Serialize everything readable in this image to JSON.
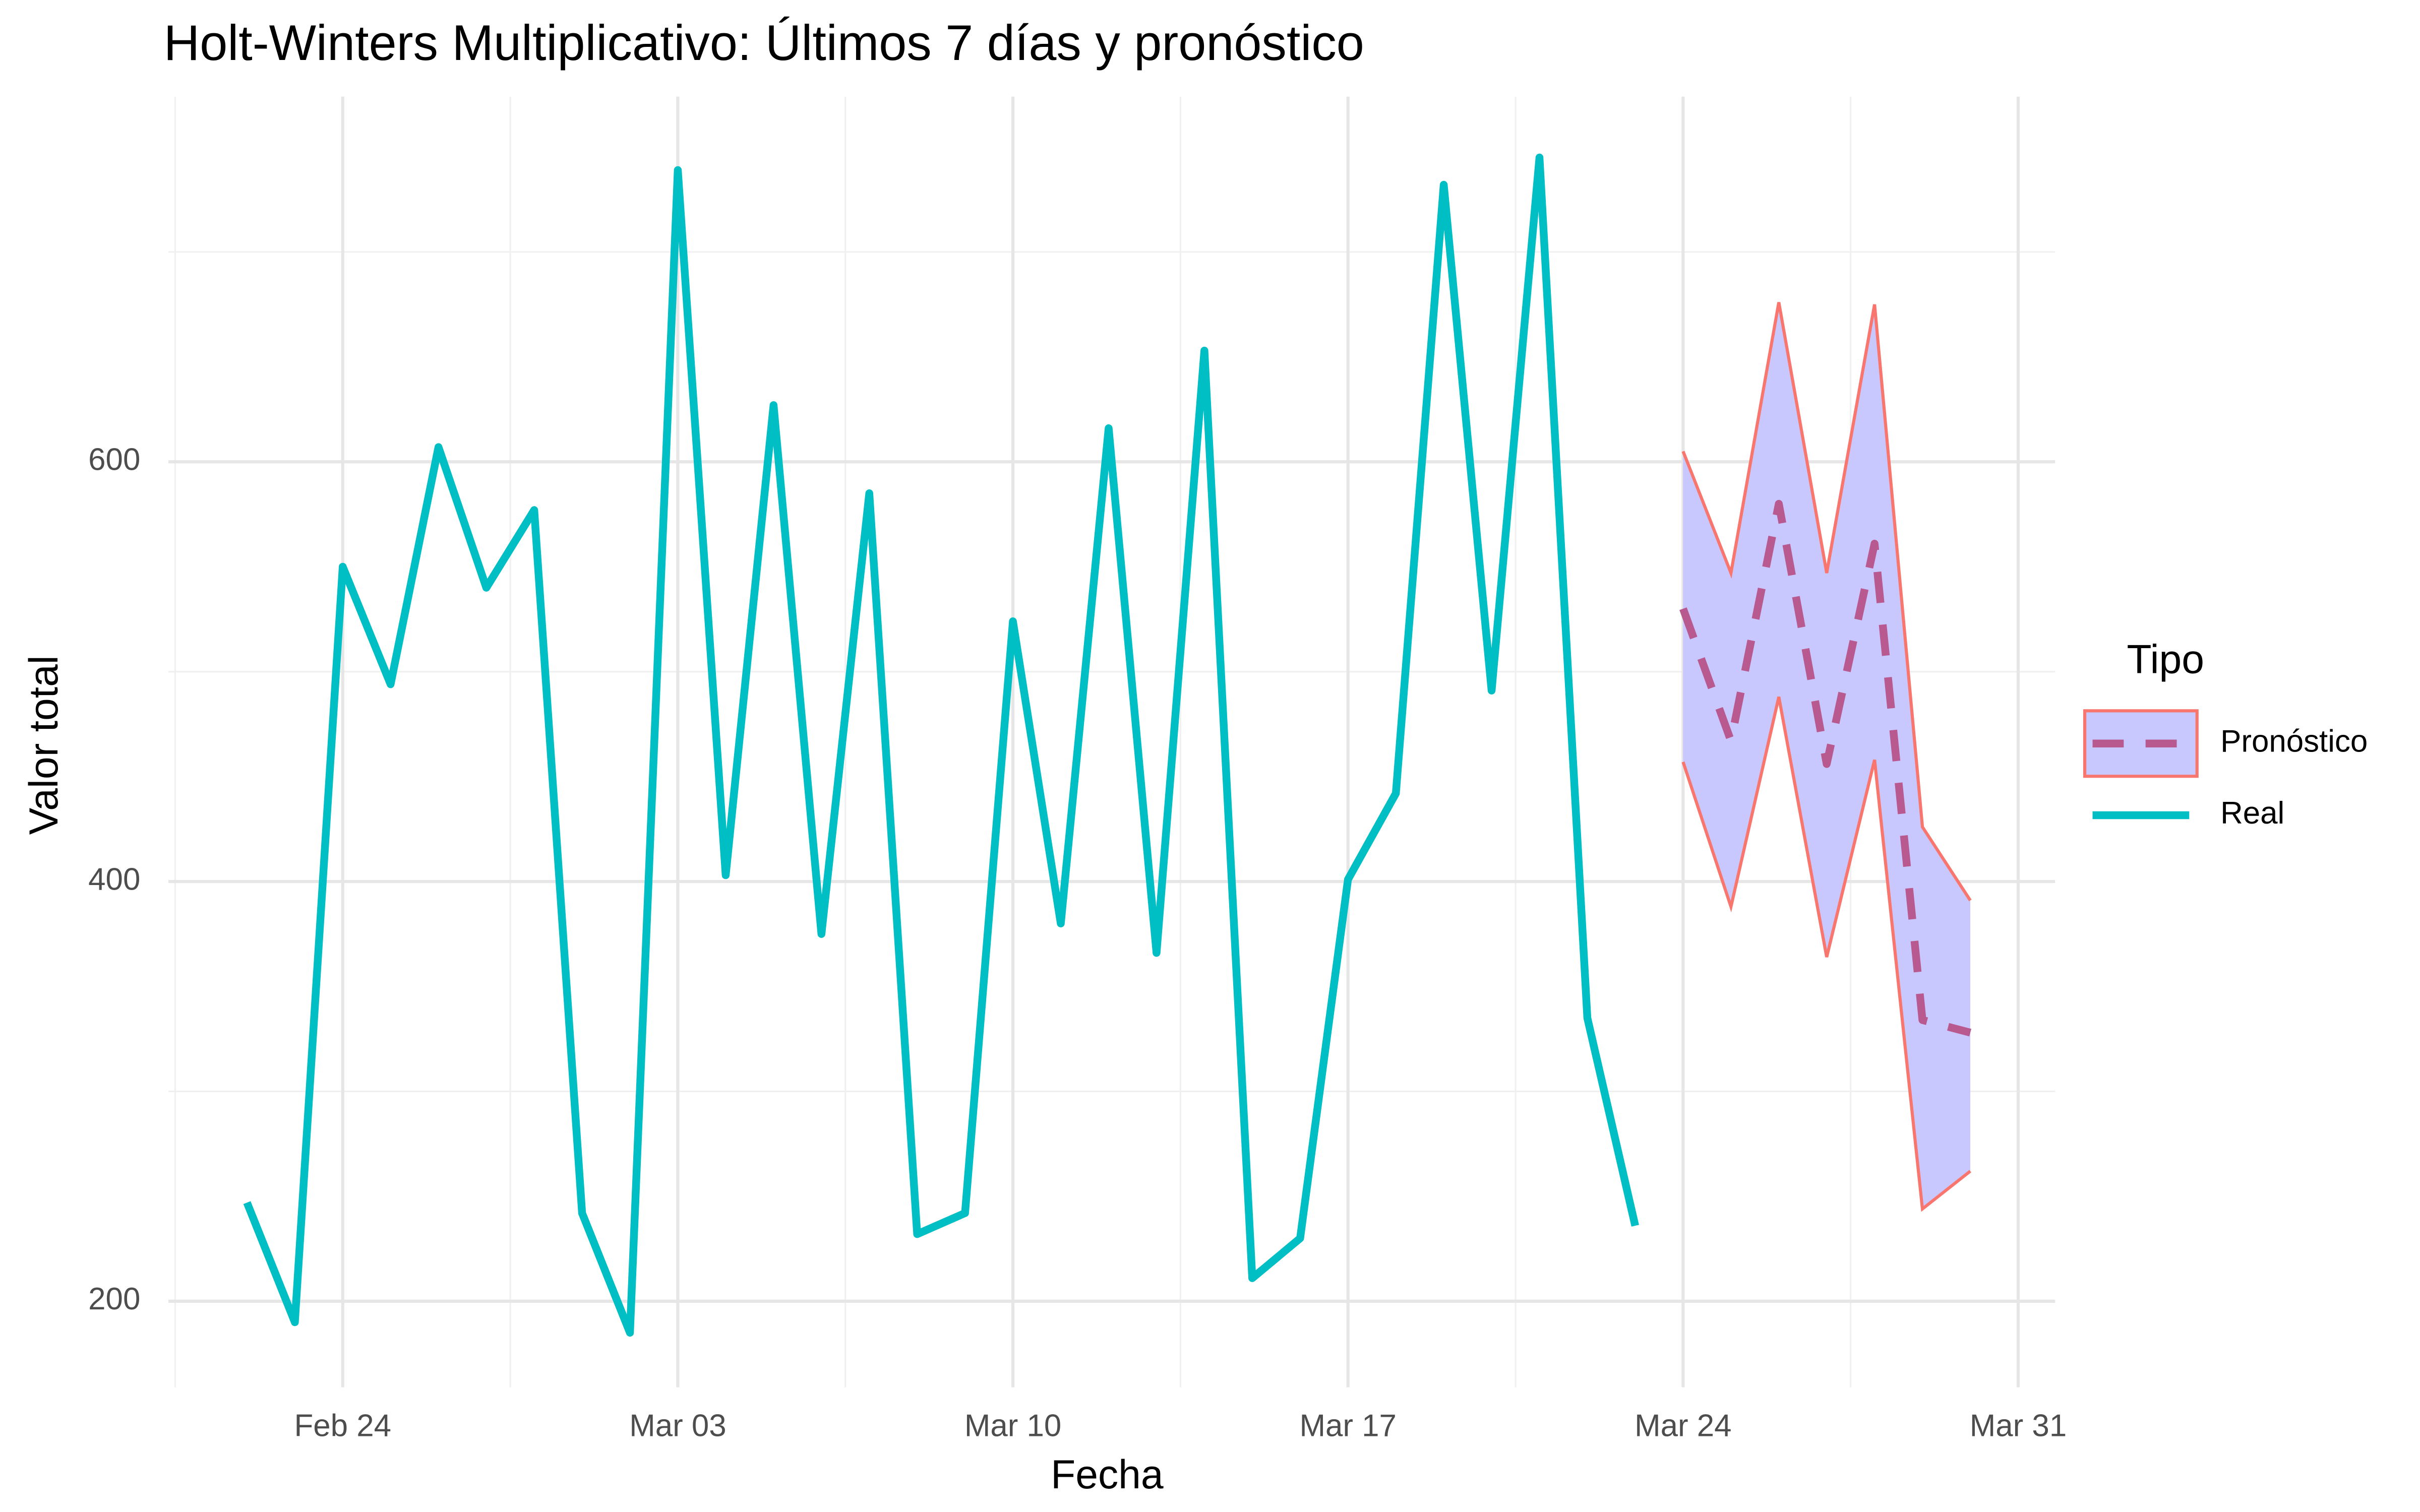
{
  "chart_data": {
    "type": "line",
    "title": "Holt-Winters Multiplicativo: Últimos 7 días y pronóstico",
    "x_label": "Fecha",
    "y_label": "Valor total",
    "legend_title": "Tipo",
    "legend_position": "right",
    "grid": true,
    "xlim": [
      "02-20",
      "04-01"
    ],
    "xticks": [
      {
        "value": "02-24",
        "label": "Feb 24"
      },
      {
        "value": "03-03",
        "label": "Mar 03"
      },
      {
        "value": "03-10",
        "label": "Mar 10"
      },
      {
        "value": "03-17",
        "label": "Mar 17"
      },
      {
        "value": "03-24",
        "label": "Mar 24"
      },
      {
        "value": "03-31",
        "label": "Mar 31"
      }
    ],
    "ylim": [
      159,
      774
    ],
    "yticks": [
      200,
      400,
      600
    ],
    "series": [
      {
        "name": "Pronóstico",
        "color": "#b85a8f",
        "band_color": "#c8c8ff",
        "band_edge_color": "#f8766d",
        "x": [
          "03-24",
          "03-25",
          "03-26",
          "03-27",
          "03-28",
          "03-29",
          "03-30"
        ],
        "values": [
          530,
          467,
          580,
          456,
          561,
          334,
          328
        ],
        "lower": [
          457,
          388,
          488,
          364,
          458,
          244,
          262
        ],
        "upper": [
          605,
          547,
          676,
          547,
          675,
          426,
          391
        ]
      },
      {
        "name": "Real",
        "color": "#00bfc4",
        "x": [
          "02-22",
          "02-23",
          "02-24",
          "02-25",
          "02-26",
          "02-27",
          "02-28",
          "03-01",
          "03-02",
          "03-03",
          "03-04",
          "03-05",
          "03-06",
          "03-07",
          "03-08",
          "03-09",
          "03-10",
          "03-11",
          "03-12",
          "03-13",
          "03-14",
          "03-15",
          "03-16",
          "03-17",
          "03-18",
          "03-19",
          "03-20",
          "03-21",
          "03-22",
          "03-23"
        ],
        "values": [
          247,
          190,
          550,
          494,
          607,
          540,
          577,
          242,
          185,
          739,
          403,
          627,
          375,
          585,
          232,
          242,
          524,
          380,
          616,
          366,
          653,
          211,
          230,
          401,
          442,
          732,
          491,
          745,
          335,
          236
        ]
      }
    ]
  }
}
